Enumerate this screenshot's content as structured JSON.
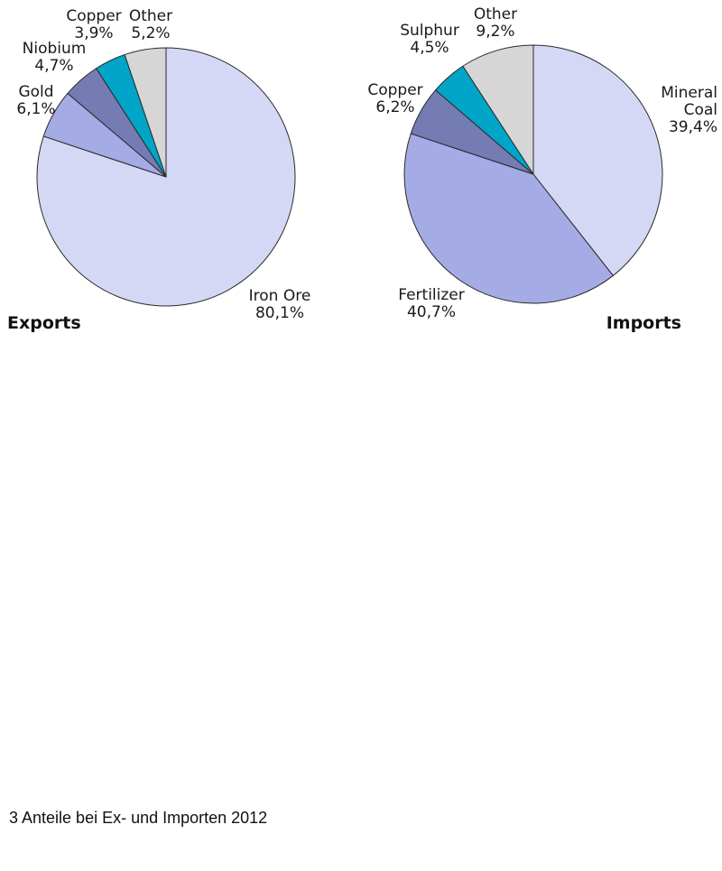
{
  "caption": "3 Anteile bei Ex- und Importen 2012",
  "chart_data": [
    {
      "type": "pie",
      "title": "Exports",
      "start_angle_deg": 0,
      "direction": "clockwise",
      "slices": [
        {
          "name": "Iron Ore",
          "value": 80.1,
          "label_lines": [
            "Iron Ore",
            "80,1%"
          ],
          "color": "#d5d8f5"
        },
        {
          "name": "Gold",
          "value": 6.1,
          "label_lines": [
            "Gold",
            "6,1%"
          ],
          "color": "#a4abe5"
        },
        {
          "name": "Niobium",
          "value": 4.7,
          "label_lines": [
            "Niobium",
            "4,7%"
          ],
          "color": "#757cb3"
        },
        {
          "name": "Copper",
          "value": 3.9,
          "label_lines": [
            "Copper",
            "3,9%"
          ],
          "color": "#00a5c8"
        },
        {
          "name": "Other",
          "value": 5.2,
          "label_lines": [
            "Other",
            "5,2%"
          ],
          "color": "#d6d6d6"
        }
      ]
    },
    {
      "type": "pie",
      "title": "Imports",
      "start_angle_deg": 0,
      "direction": "clockwise",
      "slices": [
        {
          "name": "Mineral Coal",
          "value": 39.4,
          "label_lines": [
            "Mineral",
            "Coal",
            "39,4%"
          ],
          "color": "#d5d8f5"
        },
        {
          "name": "Fertilizer",
          "value": 40.7,
          "label_lines": [
            "Fertilizer",
            "40,7%"
          ],
          "color": "#a4abe5"
        },
        {
          "name": "Copper",
          "value": 6.2,
          "label_lines": [
            "Copper",
            "6,2%"
          ],
          "color": "#757cb3"
        },
        {
          "name": "Sulphur",
          "value": 4.5,
          "label_lines": [
            "Sulphur",
            "4,5%"
          ],
          "color": "#00a5c8"
        },
        {
          "name": "Other",
          "value": 9.2,
          "label_lines": [
            "Other",
            "9,2%"
          ],
          "color": "#d6d6d6"
        }
      ]
    }
  ]
}
